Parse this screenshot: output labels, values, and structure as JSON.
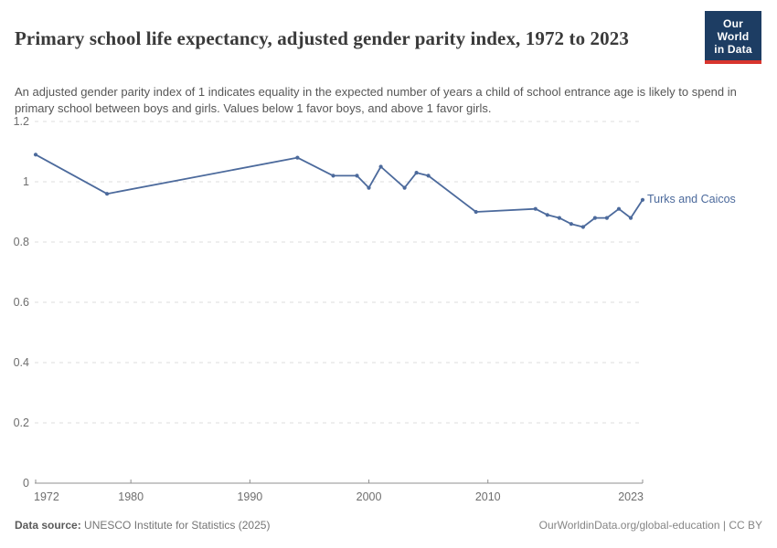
{
  "header": {
    "title": "Primary school life expectancy, adjusted gender parity index, 1972 to 2023",
    "subtitle": "An adjusted gender parity index of 1 indicates equality in the expected number of years a child of school entrance age is likely to spend in primary school between boys and girls. Values below 1 favor boys, and above 1 favor girls.",
    "logo": {
      "line1": "Our World",
      "line2": "in Data",
      "bg_color": "#1d3d63",
      "accent_color": "#d8352e"
    }
  },
  "chart_data": {
    "type": "line",
    "title": "Primary school life expectancy, adjusted gender parity index, 1972 to 2023",
    "entity": "Turks and Caicos",
    "series": [
      {
        "name": "Turks and Caicos",
        "x": [
          1972,
          1978,
          1994,
          1997,
          1999,
          2000,
          2001,
          2003,
          2004,
          2005,
          2009,
          2014,
          2015,
          2016,
          2017,
          2018,
          2019,
          2020,
          2021,
          2022,
          2023
        ],
        "y": [
          1.09,
          0.96,
          1.08,
          1.02,
          1.02,
          0.98,
          1.05,
          0.98,
          1.03,
          1.02,
          0.9,
          0.91,
          0.89,
          0.88,
          0.86,
          0.85,
          0.88,
          0.88,
          0.91,
          0.88,
          0.94
        ]
      }
    ],
    "xlabel": "",
    "ylabel": "",
    "xlim": [
      1972,
      2023
    ],
    "ylim": [
      0,
      1.2
    ],
    "xtick_values": [
      1972,
      1980,
      1990,
      2000,
      2010,
      2023
    ],
    "xtick_labels": [
      "1972",
      "1980",
      "1990",
      "2000",
      "2010",
      "2023"
    ],
    "ytick_values": [
      0,
      0.2,
      0.4,
      0.6,
      0.8,
      1,
      1.2
    ],
    "ytick_labels": [
      "0",
      "0.2",
      "0.4",
      "0.6",
      "0.8",
      "1",
      "1.2"
    ],
    "grid": true,
    "legend_position": "end-of-line label",
    "line_color": "#4C6A9C",
    "grid_color": "#dcdcdc",
    "axis_color": "#8f8f8f",
    "tick_label_color": "#6e6e6e"
  },
  "footer": {
    "source_label": "Data source:",
    "source_text": " UNESCO Institute for Statistics (2025)",
    "right_text": "OurWorldinData.org/global-education | CC BY"
  }
}
